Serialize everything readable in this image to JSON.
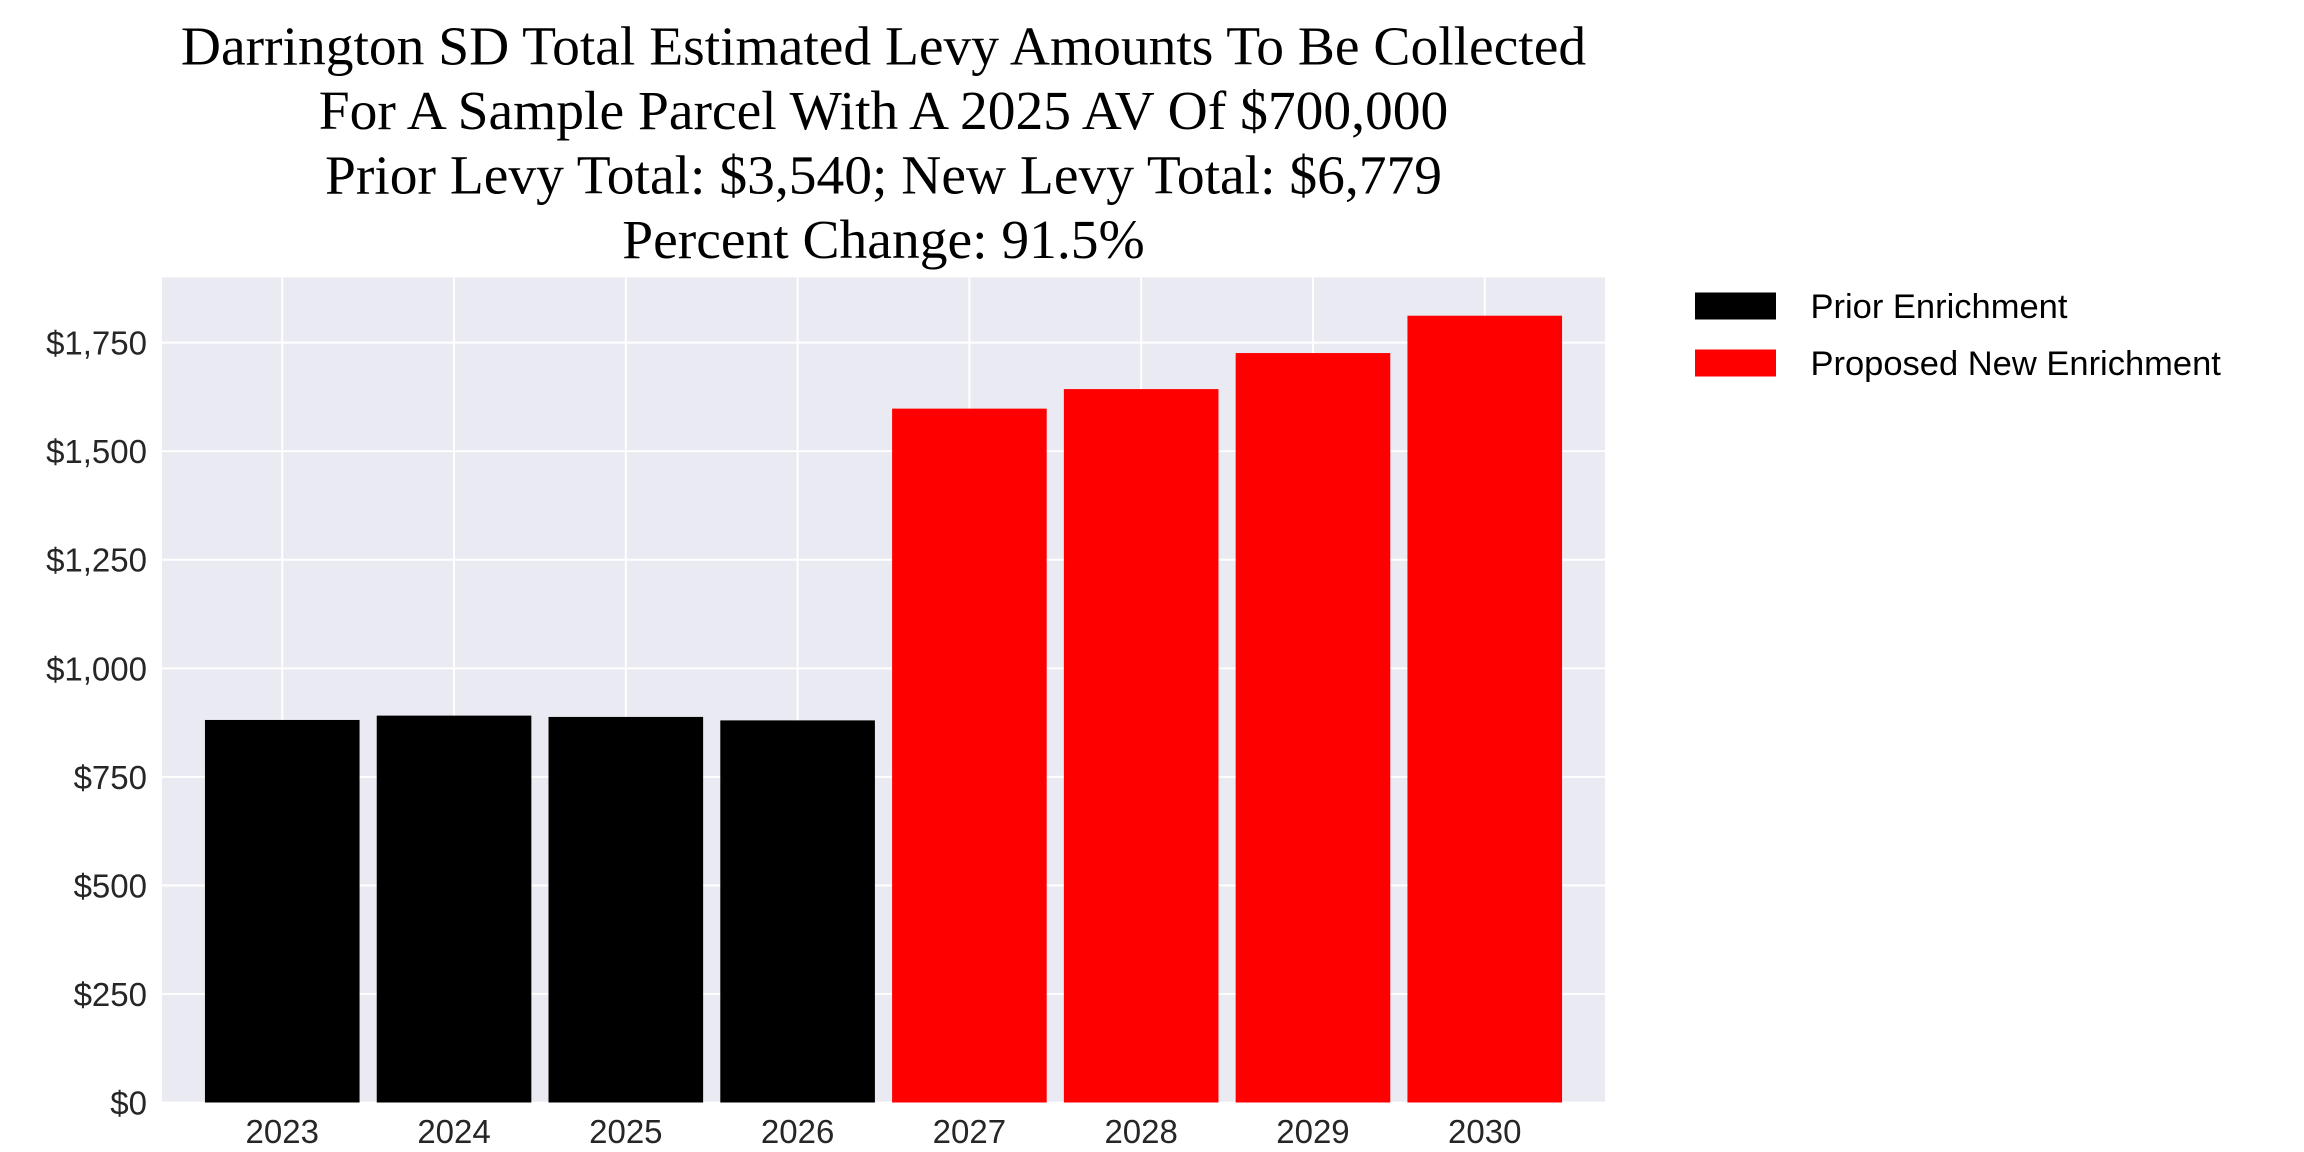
{
  "chart_data": {
    "type": "bar",
    "title_lines": [
      "Darrington SD Total Estimated Levy Amounts To Be Collected",
      "For A Sample Parcel With A 2025 AV Of $700,000",
      "Prior Levy Total:  $3,540; New Levy Total: $6,779",
      "Percent Change: 91.5%"
    ],
    "categories": [
      "2023",
      "2024",
      "2025",
      "2026",
      "2027",
      "2028",
      "2029",
      "2030"
    ],
    "series": [
      {
        "name": "Prior Enrichment",
        "color": "#000000",
        "values": [
          881,
          891,
          888,
          880,
          null,
          null,
          null,
          null
        ]
      },
      {
        "name": "Proposed New Enrichment",
        "color": "#ff0000",
        "values": [
          null,
          null,
          null,
          null,
          1598,
          1643,
          1726,
          1812
        ]
      }
    ],
    "yticks": [
      0,
      250,
      500,
      750,
      1000,
      1250,
      1500,
      1750
    ],
    "ytick_labels": [
      "$0",
      "$250",
      "$500",
      "$750",
      "$1,000",
      "$1,250",
      "$1,500",
      "$1,750"
    ],
    "ylim": [
      0,
      1900
    ],
    "xlabel": "",
    "ylabel": "",
    "grid": true,
    "background": "#eaeaf2",
    "legend_position": "outside-top-right"
  }
}
